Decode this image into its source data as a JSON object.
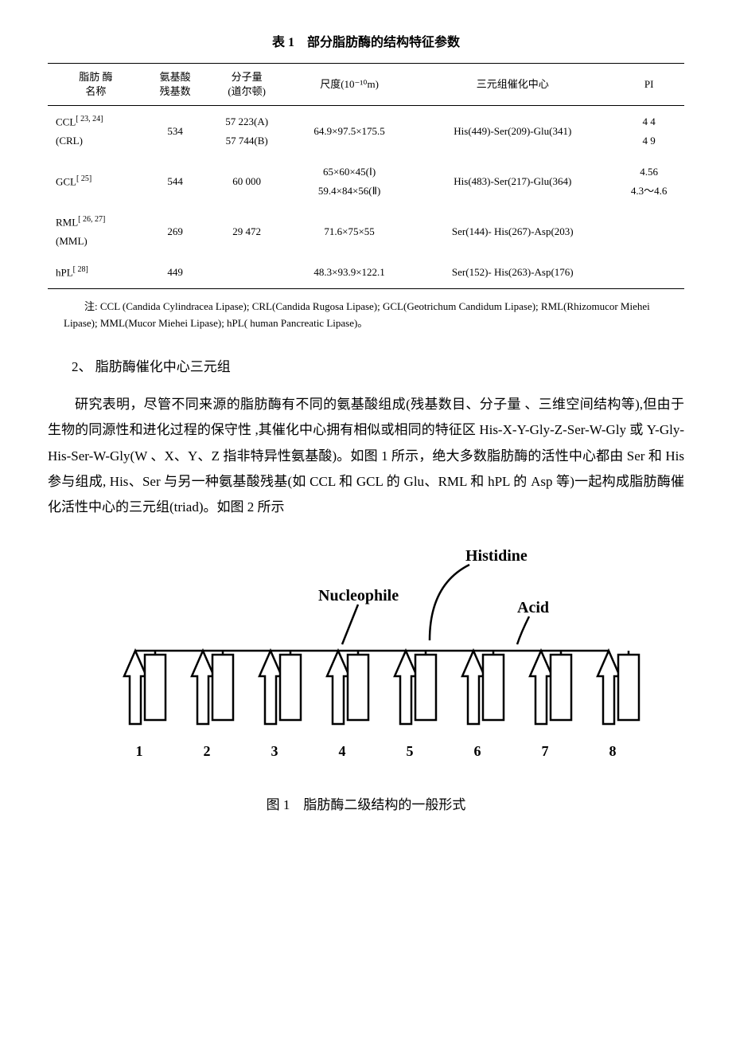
{
  "table": {
    "caption": "表 1　部分脂肪酶的结构特征参数",
    "headers": {
      "name": "脂肪 酶\n名称",
      "residues": "氨基酸\n残基数",
      "mw": "分子量\n(道尔顿)",
      "dimensions": "尺度(10⁻¹⁰m)",
      "triad": "三元组催化中心",
      "pi": "PI"
    },
    "rows": [
      {
        "name_main": "CCL",
        "name_ref": "[ 23, 24]",
        "name_sub": "(CRL)",
        "residues": "534",
        "mw": "57 223(A)\n57 744(B)",
        "dimensions": "64.9×97.5×175.5",
        "triad": "His(449)-Ser(209)-Glu(341)",
        "pi": "4 4\n4 9"
      },
      {
        "name_main": "GCL",
        "name_ref": "[ 25]",
        "name_sub": "",
        "residues": "544",
        "mw": "60 000",
        "dimensions": "65×60×45(Ⅰ)\n59.4×84×56(Ⅱ)",
        "triad": "His(483)-Ser(217)-Glu(364)",
        "pi": "4.56\n4.3～4.6"
      },
      {
        "name_main": "RML",
        "name_ref": "[ 26, 27]",
        "name_sub": "(MML)",
        "residues": "269",
        "mw": "29 472",
        "dimensions": "71.6×75×55",
        "triad": "Ser(144)- His(267)-Asp(203)",
        "pi": ""
      },
      {
        "name_main": "hPL",
        "name_ref": "[ 28]",
        "name_sub": "",
        "residues": "449",
        "mw": "",
        "dimensions": "48.3×93.9×122.1",
        "triad": "Ser(152)- His(263)-Asp(176)",
        "pi": ""
      }
    ],
    "note": "注: CCL (Candida Cylindracea Lipase); CRL(Candida Rugosa Lipase); GCL(Geotrichum Candidum Lipase); RML(Rhizomucor Miehei Lipase); MML(Mucor Miehei Lipase); hPL( human Pancreatic Lipase)。"
  },
  "section": {
    "title": "2、 脂肪酶催化中心三元组",
    "paragraph": "研究表明，尽管不同来源的脂肪酶有不同的氨基酸组成(残基数目、分子量 、三维空间结构等),但由于生物的同源性和进化过程的保守性 ,其催化中心拥有相似或相同的特征区 His-X-Y-Gly-Z-Ser-W-Gly 或 Y-Gly-His-Ser-W-Gly(W 、X、Y、Z 指非特异性氨基酸)。如图 1 所示，绝大多数脂肪酶的活性中心都由 Ser 和 His 参与组成, His、Ser 与另一种氨基酸残基(如 CCL 和 GCL 的 Glu、RML 和 hPL 的 Asp 等)一起构成脂肪酶催化活性中心的三元组(triad)。如图 2 所示"
  },
  "figure": {
    "caption": "图 1　脂肪酶二级结构的一般形式",
    "labels": {
      "histidine": "Histidine",
      "nucleophile": "Nucleophile",
      "acid": "Acid"
    },
    "x_numbers": [
      "1",
      "2",
      "3",
      "4",
      "5",
      "6",
      "7",
      "8"
    ],
    "colors": {
      "stroke": "#000000",
      "fill": "#ffffff",
      "watermark": "#dcdcdc"
    },
    "stroke_width": 2.5
  }
}
